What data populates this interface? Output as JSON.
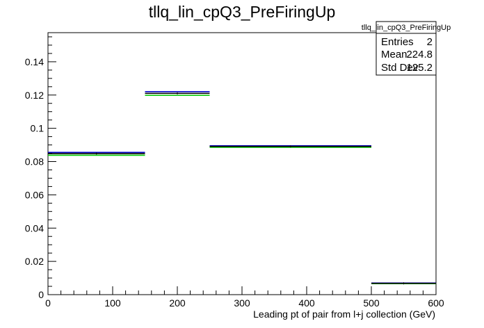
{
  "chart_data": {
    "type": "histogram",
    "title": "tllq_lin_cpQ3_PreFiringUp",
    "xlabel": "Leading pt of pair from l+j collection (GeV)",
    "ylabel": "",
    "xlim": [
      0,
      600
    ],
    "ylim": [
      0,
      0.1575
    ],
    "x_ticks": [
      0,
      100,
      200,
      300,
      400,
      500,
      600
    ],
    "x_tick_labels": [
      "0",
      "100",
      "200",
      "300",
      "400",
      "500",
      "600"
    ],
    "y_ticks": [
      0,
      0.02,
      0.04,
      0.06,
      0.08,
      0.1,
      0.12,
      0.14
    ],
    "y_tick_labels": [
      "0",
      "0.02",
      "0.04",
      "0.06",
      "0.08",
      "0.1",
      "0.12",
      "0.14"
    ],
    "grid": false,
    "bin_edges": [
      0,
      150,
      250,
      500,
      600
    ],
    "series": [
      {
        "color": "#000000",
        "values": [
          0.0848,
          0.121,
          0.0891,
          0.0068
        ]
      },
      {
        "color": "#0000cc",
        "values": [
          0.0855,
          0.122,
          0.0895,
          0.007
        ]
      },
      {
        "color": "#00cc00",
        "values": [
          0.0838,
          0.1198,
          0.0886,
          0.0066
        ]
      }
    ],
    "stats_box": {
      "title": "tllq_lin_cpQ3_PreFiringUp",
      "rows": [
        {
          "label": "Entries",
          "value": "2"
        },
        {
          "label": "Mean",
          "value": "224.8"
        },
        {
          "label": "Std Dev",
          "value": "125.2"
        }
      ],
      "placement": "top-right"
    }
  }
}
